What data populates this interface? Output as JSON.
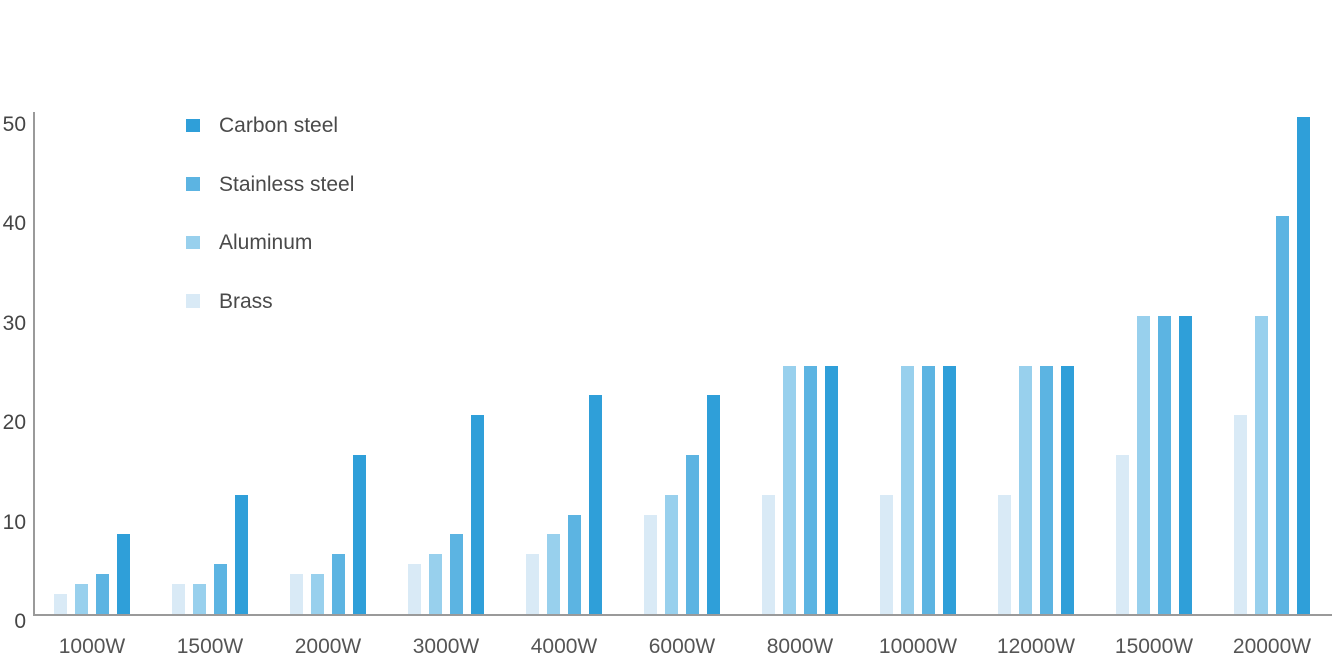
{
  "chart_data": {
    "type": "bar",
    "title": "",
    "xlabel": "",
    "ylabel": "",
    "categories": [
      "1000W",
      "1500W",
      "2000W",
      "3000W",
      "4000W",
      "6000W",
      "8000W",
      "10000W",
      "12000W",
      "15000W",
      "20000W"
    ],
    "series": [
      {
        "name": "Brass",
        "color": "#D9EAF6",
        "values": [
          2,
          3,
          4,
          5,
          6,
          10,
          12,
          12,
          12,
          16,
          20
        ]
      },
      {
        "name": "Aluminum",
        "color": "#98D0ED",
        "values": [
          3,
          3,
          4,
          6,
          8,
          12,
          25,
          25,
          25,
          30,
          30
        ]
      },
      {
        "name": "Stainless steel",
        "color": "#5CB4E2",
        "values": [
          4,
          5,
          6,
          8,
          10,
          16,
          25,
          25,
          25,
          30,
          40
        ]
      },
      {
        "name": "Carbon steel",
        "color": "#2F9FD9",
        "values": [
          8,
          12,
          16,
          20,
          22,
          22,
          25,
          25,
          25,
          30,
          50
        ]
      }
    ],
    "legend": {
      "position": "top-left",
      "order": [
        "Carbon steel",
        "Stainless steel",
        "Aluminum",
        "Brass"
      ]
    },
    "y_axis": {
      "min": 0,
      "max": 50,
      "ticks": [
        0,
        10,
        20,
        30,
        40,
        50
      ]
    },
    "grid": false
  },
  "colors": {
    "axis": "#9a9a9a",
    "tick_text": "#454545",
    "category_text": "#555555",
    "legend_text": "#4a4a4a",
    "background": "#ffffff"
  }
}
